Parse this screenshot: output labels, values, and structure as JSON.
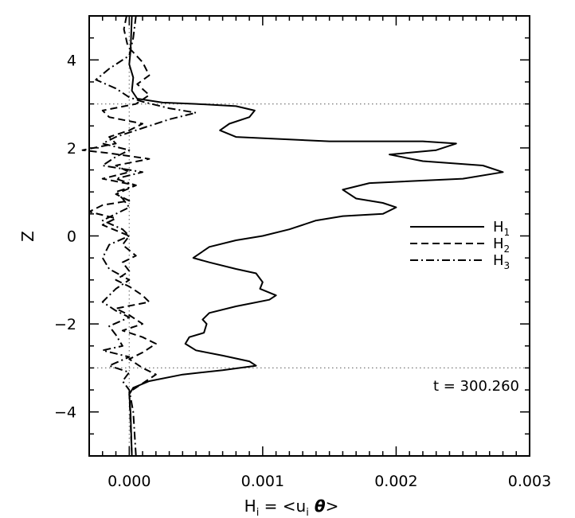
{
  "chart_data": {
    "type": "line",
    "xlabel": "H_i = <u_i θ>",
    "ylabel": "Z",
    "xlim": [
      -0.0003,
      0.003
    ],
    "ylim": [
      -5,
      5
    ],
    "x_ticks": [
      {
        "value": 0.0,
        "label": "0.000"
      },
      {
        "value": 0.001,
        "label": "0.001"
      },
      {
        "value": 0.002,
        "label": "0.002"
      },
      {
        "value": 0.003,
        "label": "0.003"
      }
    ],
    "y_ticks": [
      {
        "value": 4,
        "label": "4"
      },
      {
        "value": 2,
        "label": "2"
      },
      {
        "value": 0,
        "label": "0"
      },
      {
        "value": -2,
        "label": "−2"
      },
      {
        "value": -4,
        "label": "−4"
      }
    ],
    "reference_lines": {
      "horizontal": [
        3,
        -3
      ],
      "vertical": [
        0
      ],
      "style": "dotted"
    },
    "annotation": "t = 300.260",
    "legend_position": "right-middle",
    "series": [
      {
        "name": "H1",
        "label_main": "H",
        "label_sub": "1",
        "dash": "solid",
        "points": [
          [
            2e-05,
            5.0
          ],
          [
            1e-05,
            4.2
          ],
          [
            0.0,
            3.9
          ],
          [
            3e-05,
            3.6
          ],
          [
            2e-05,
            3.3
          ],
          [
            6e-05,
            3.12
          ],
          [
            0.00025,
            3.03
          ],
          [
            0.0005,
            3.0
          ],
          [
            0.0008,
            2.95
          ],
          [
            0.00094,
            2.85
          ],
          [
            0.0009,
            2.7
          ],
          [
            0.00075,
            2.55
          ],
          [
            0.00068,
            2.4
          ],
          [
            0.0008,
            2.25
          ],
          [
            0.0015,
            2.15
          ],
          [
            0.0022,
            2.15
          ],
          [
            0.00245,
            2.1
          ],
          [
            0.0023,
            1.95
          ],
          [
            0.00195,
            1.85
          ],
          [
            0.0022,
            1.7
          ],
          [
            0.00265,
            1.6
          ],
          [
            0.0028,
            1.45
          ],
          [
            0.0025,
            1.3
          ],
          [
            0.0018,
            1.2
          ],
          [
            0.0016,
            1.05
          ],
          [
            0.0017,
            0.85
          ],
          [
            0.0019,
            0.75
          ],
          [
            0.002,
            0.65
          ],
          [
            0.0019,
            0.5
          ],
          [
            0.0016,
            0.45
          ],
          [
            0.0014,
            0.35
          ],
          [
            0.0012,
            0.15
          ],
          [
            0.001,
            0.0
          ],
          [
            0.0008,
            -0.1
          ],
          [
            0.0006,
            -0.25
          ],
          [
            0.00048,
            -0.5
          ],
          [
            0.0006,
            -0.6
          ],
          [
            0.0008,
            -0.75
          ],
          [
            0.00095,
            -0.85
          ],
          [
            0.001,
            -1.05
          ],
          [
            0.00098,
            -1.2
          ],
          [
            0.0011,
            -1.35
          ],
          [
            0.00105,
            -1.45
          ],
          [
            0.0008,
            -1.6
          ],
          [
            0.0006,
            -1.75
          ],
          [
            0.00055,
            -1.9
          ],
          [
            0.00058,
            -2.0
          ],
          [
            0.00056,
            -2.2
          ],
          [
            0.00045,
            -2.3
          ],
          [
            0.00042,
            -2.45
          ],
          [
            0.0005,
            -2.6
          ],
          [
            0.0007,
            -2.72
          ],
          [
            0.0009,
            -2.85
          ],
          [
            0.00095,
            -2.95
          ],
          [
            0.0007,
            -3.05
          ],
          [
            0.0004,
            -3.15
          ],
          [
            0.00015,
            -3.3
          ],
          [
            3e-05,
            -3.45
          ],
          [
            0.0,
            -3.6
          ],
          [
            1e-05,
            -4.0
          ],
          [
            2e-05,
            -5.0
          ]
        ]
      },
      {
        "name": "H2",
        "label_main": "H",
        "label_sub": "2",
        "dash": "dashed",
        "points": [
          [
            -2e-05,
            5.0
          ],
          [
            -4e-05,
            4.7
          ],
          [
            -1e-05,
            4.3
          ],
          [
            0.0001,
            3.95
          ],
          [
            0.00015,
            3.65
          ],
          [
            6e-05,
            3.45
          ],
          [
            0.00015,
            3.2
          ],
          [
            5e-05,
            3.0
          ],
          [
            -0.0002,
            2.85
          ],
          [
            -0.00015,
            2.7
          ],
          [
            0.0001,
            2.55
          ],
          [
            0.0,
            2.4
          ],
          [
            -0.00015,
            2.25
          ],
          [
            -0.0001,
            2.1
          ],
          [
            -0.00035,
            1.95
          ],
          [
            -0.00015,
            1.88
          ],
          [
            0.00015,
            1.75
          ],
          [
            -0.0001,
            1.6
          ],
          [
            0.0,
            1.45
          ],
          [
            -0.0002,
            1.3
          ],
          [
            5e-05,
            1.15
          ],
          [
            -0.0001,
            0.95
          ],
          [
            0.0,
            0.8
          ],
          [
            -0.0002,
            0.7
          ],
          [
            -0.0003,
            0.55
          ],
          [
            -0.0001,
            0.4
          ],
          [
            -0.0002,
            0.25
          ],
          [
            0.0,
            0.0
          ],
          [
            -5e-05,
            -0.2
          ],
          [
            5e-05,
            -0.45
          ],
          [
            -5e-05,
            -0.6
          ],
          [
            0.0,
            -0.8
          ],
          [
            -0.0001,
            -1.0
          ],
          [
            0.0,
            -1.15
          ],
          [
            0.0001,
            -1.35
          ],
          [
            0.00015,
            -1.5
          ],
          [
            -0.0001,
            -1.65
          ],
          [
            0.0,
            -1.8
          ],
          [
            0.0001,
            -2.0
          ],
          [
            -5e-05,
            -2.15
          ],
          [
            0.0001,
            -2.3
          ],
          [
            0.0002,
            -2.45
          ],
          [
            0.0001,
            -2.65
          ],
          [
            0.0,
            -2.8
          ],
          [
            0.0001,
            -3.0
          ],
          [
            0.0002,
            -3.15
          ],
          [
            0.0001,
            -3.35
          ],
          [
            0.0,
            -3.55
          ],
          [
            2e-05,
            -5.0
          ]
        ]
      },
      {
        "name": "H3",
        "label_main": "H",
        "label_sub": "3",
        "dash": "dashdot",
        "points": [
          [
            5e-05,
            5.0
          ],
          [
            3e-05,
            4.5
          ],
          [
            0.0,
            4.1
          ],
          [
            -0.00015,
            3.8
          ],
          [
            -0.00025,
            3.55
          ],
          [
            -0.0001,
            3.35
          ],
          [
            0.0,
            3.15
          ],
          [
            0.0001,
            3.05
          ],
          [
            0.0003,
            2.9
          ],
          [
            0.0005,
            2.8
          ],
          [
            0.0003,
            2.65
          ],
          [
            0.0001,
            2.45
          ],
          [
            -0.0001,
            2.25
          ],
          [
            -0.0002,
            2.1
          ],
          [
            0.0,
            1.95
          ],
          [
            -0.0001,
            1.8
          ],
          [
            -0.0002,
            1.6
          ],
          [
            0.0001,
            1.45
          ],
          [
            -0.0001,
            1.3
          ],
          [
            5e-05,
            1.15
          ],
          [
            -0.0001,
            1.0
          ],
          [
            -5e-05,
            0.85
          ],
          [
            0.0,
            0.65
          ],
          [
            -0.0001,
            0.5
          ],
          [
            -0.0002,
            0.35
          ],
          [
            -5e-05,
            0.15
          ],
          [
            0.0,
            0.0
          ],
          [
            -0.00015,
            -0.2
          ],
          [
            -0.0002,
            -0.5
          ],
          [
            -0.00015,
            -0.75
          ],
          [
            0.0,
            -1.0
          ],
          [
            -0.0001,
            -1.2
          ],
          [
            -0.0002,
            -1.5
          ],
          [
            -0.0001,
            -1.7
          ],
          [
            0.0,
            -1.85
          ],
          [
            -0.00015,
            -2.05
          ],
          [
            -0.0001,
            -2.25
          ],
          [
            -5e-05,
            -2.5
          ],
          [
            -0.0002,
            -2.6
          ],
          [
            0.0,
            -2.75
          ],
          [
            -0.00015,
            -2.95
          ],
          [
            0.0,
            -3.1
          ],
          [
            -5e-05,
            -3.3
          ],
          [
            0.0,
            -3.5
          ],
          [
            3e-05,
            -4.0
          ],
          [
            5e-05,
            -5.0
          ]
        ]
      }
    ]
  }
}
